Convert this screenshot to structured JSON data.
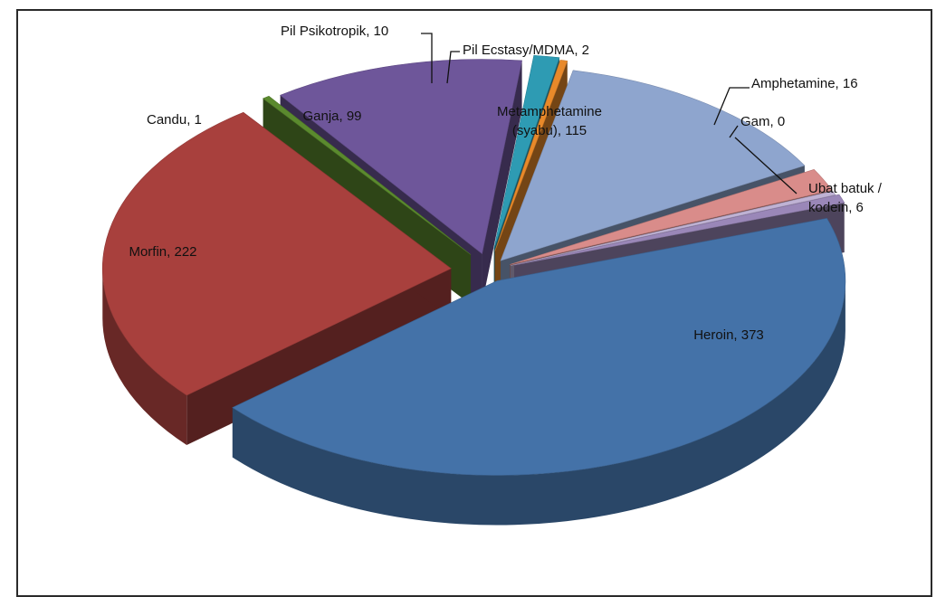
{
  "chart_data": {
    "type": "pie",
    "title": "",
    "three_d": true,
    "legend": "none",
    "slices": [
      {
        "label": "Metamphetamine (syabu)",
        "label_lines": [
          "Metamphetamine",
          "(syabu), 115"
        ],
        "value": 115,
        "color": "#8EA5CE"
      },
      {
        "label": "Amphetamine",
        "label_lines": [
          "Amphetamine, 16"
        ],
        "value": 16,
        "color": "#D98C8A"
      },
      {
        "label": "Gam",
        "label_lines": [
          "Gam, 0"
        ],
        "value": 0,
        "color": "#BFB2D4"
      },
      {
        "label": "Ubat batuk / kodein",
        "label_lines": [
          "Ubat batuk /",
          "kodein, 6"
        ],
        "value": 6,
        "color": "#9A87B8"
      },
      {
        "label": "Heroin",
        "label_lines": [
          "Heroin, 373"
        ],
        "value": 373,
        "color": "#4472A8"
      },
      {
        "label": "Morfin",
        "label_lines": [
          "Morfin, 222"
        ],
        "value": 222,
        "color": "#A8403D"
      },
      {
        "label": "Candu",
        "label_lines": [
          "Candu, 1"
        ],
        "value": 1,
        "color": "#5B8A2E"
      },
      {
        "label": "Ganja",
        "label_lines": [
          "Ganja, 99"
        ],
        "value": 99,
        "color": "#6E569A"
      },
      {
        "label": "Pil Psikotropik",
        "label_lines": [
          "Pil Psikotropik, 10"
        ],
        "value": 10,
        "color": "#2E9BB3"
      },
      {
        "label": "Pil Ecstasy/MDMA",
        "label_lines": [
          "Pil Ecstasy/MDMA, 2"
        ],
        "value": 2,
        "color": "#E8892A"
      }
    ]
  }
}
